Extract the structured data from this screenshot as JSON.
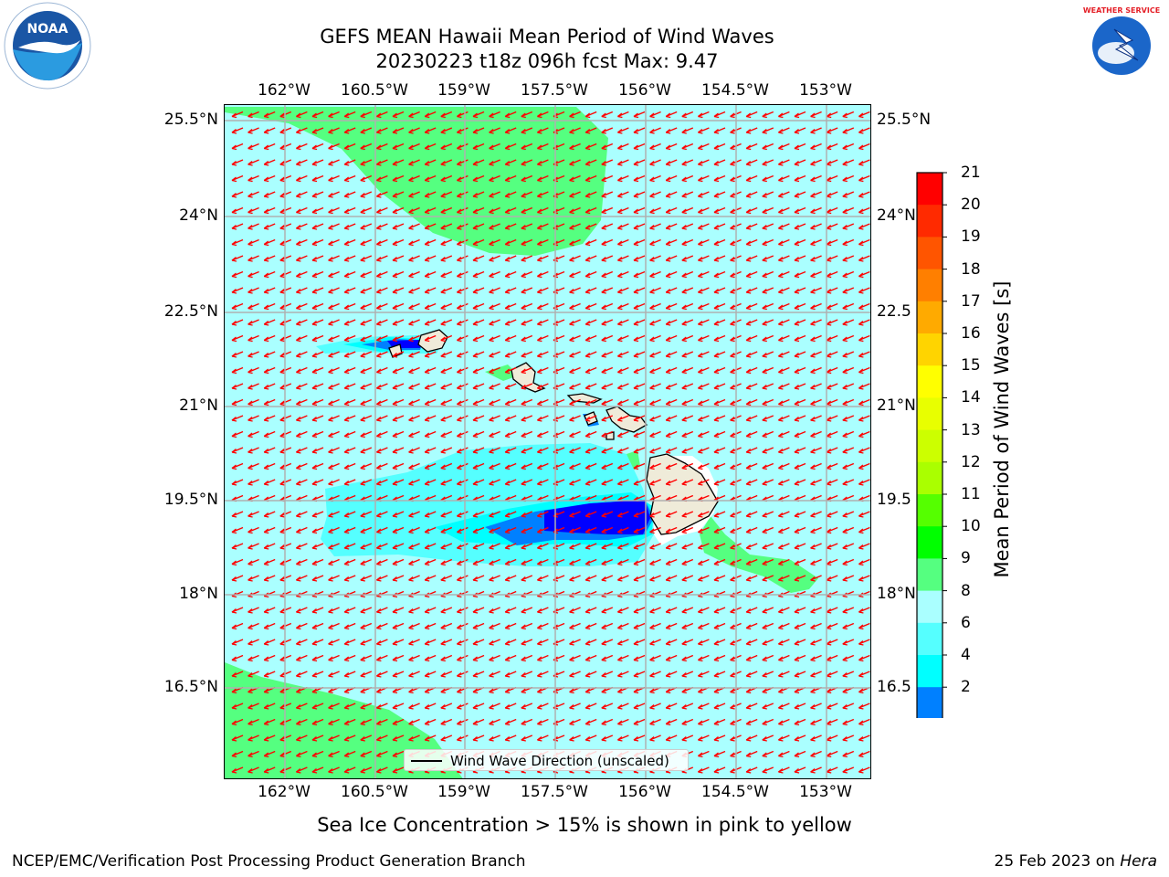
{
  "title": {
    "line1": "GEFS MEAN Hawaii Mean Period of Wind Waves",
    "line2": "20230223 t18z 096h fcst   Max: 9.47"
  },
  "axes": {
    "lon_ticks": [
      "162°W",
      "160.5°W",
      "159°W",
      "157.5°W",
      "156°W",
      "154.5°W",
      "153°W"
    ],
    "lat_ticks_left": [
      "25.5°N",
      "24°N",
      "22.5°N",
      "21°N",
      "19.5°N",
      "18°N",
      "16.5°N"
    ],
    "lat_ticks_right": [
      "25.5°N",
      "24°N",
      "22.5",
      "21°N",
      "19.5",
      "18°N",
      "16.5"
    ]
  },
  "legend": {
    "label": "Wind Wave Direction (unscaled)"
  },
  "colorbar": {
    "title": "Mean Period of Wind Waves [s]",
    "labels": [
      "21",
      "20",
      "19",
      "18",
      "17",
      "16",
      "15",
      "14",
      "13",
      "12",
      "11",
      "10",
      "9",
      "8",
      "6",
      "4",
      "2"
    ],
    "colors_top_to_bottom": [
      "#ff0000",
      "#ff2a00",
      "#ff5500",
      "#ff7f00",
      "#ffaa00",
      "#ffd400",
      "#ffff00",
      "#e8ff00",
      "#ccff00",
      "#aaff00",
      "#55ff00",
      "#00ff00",
      "#55ff80",
      "#aaffff",
      "#55ffff",
      "#00ffff",
      "#0080ff"
    ],
    "extend_color": "#0000ff"
  },
  "map": {
    "ocean_color": "#aaffff",
    "arrow_color": "#ff0000",
    "land_color": "#efebd9"
  },
  "footnote": "Sea Ice Concentration > 15% is shown in pink to yellow",
  "credits": {
    "left": "NCEP/EMC/Verification Post Processing Product Generation Branch",
    "right_date": "25 Feb 2023 on ",
    "right_machine": "Hera"
  },
  "logos": {
    "left": "NOAA",
    "right": "NATIONAL WEATHER SERVICE"
  }
}
